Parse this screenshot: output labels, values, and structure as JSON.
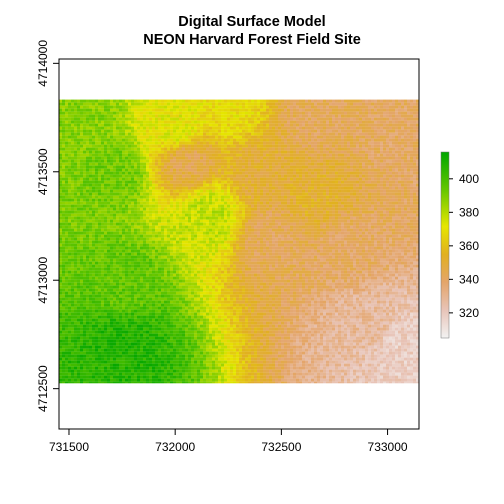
{
  "chart_data": {
    "type": "heatmap",
    "title": "Digital Surface Model",
    "subtitle": "NEON Harvard Forest Field Site",
    "xlabel": "",
    "ylabel": "",
    "xlim": [
      731453,
      733148
    ],
    "ylim": [
      4712314,
      4714020
    ],
    "raster_extent": {
      "xmin": 731453,
      "xmax": 733148,
      "ymin": 4712525,
      "ymax": 4713833
    },
    "x_ticks": [
      731500,
      732000,
      732500,
      733000
    ],
    "y_ticks": [
      4712500,
      4713000,
      4713500,
      4714000
    ],
    "x_tick_labels": [
      "731500",
      "732000",
      "732500",
      "733000"
    ],
    "y_tick_labels": [
      "4712500",
      "4713000",
      "4713500",
      "4714000"
    ],
    "legend": {
      "placement": "right",
      "value_range": [
        305,
        416
      ],
      "ticks": [
        320,
        340,
        360,
        380,
        400
      ],
      "tick_labels": [
        "320",
        "340",
        "360",
        "380",
        "400"
      ],
      "colors": [
        "#F2F2F2",
        "#E8C4B8",
        "#E4A56A",
        "#E1B020",
        "#E6E600",
        "#63C600",
        "#00A600"
      ]
    },
    "grid": false,
    "surface_anchors": [
      {
        "x": 731550,
        "y": 4713750,
        "value": 388
      },
      {
        "x": 731700,
        "y": 4713500,
        "value": 392
      },
      {
        "x": 731750,
        "y": 4713000,
        "value": 395
      },
      {
        "x": 731750,
        "y": 4712700,
        "value": 408
      },
      {
        "x": 732000,
        "y": 4713700,
        "value": 372
      },
      {
        "x": 732050,
        "y": 4713560,
        "value": 345
      },
      {
        "x": 732150,
        "y": 4713300,
        "value": 378
      },
      {
        "x": 732250,
        "y": 4713800,
        "value": 368
      },
      {
        "x": 732400,
        "y": 4713500,
        "value": 350
      },
      {
        "x": 732450,
        "y": 4713200,
        "value": 342
      },
      {
        "x": 732650,
        "y": 4713750,
        "value": 342
      },
      {
        "x": 732650,
        "y": 4713400,
        "value": 352
      },
      {
        "x": 732800,
        "y": 4713150,
        "value": 340
      },
      {
        "x": 732900,
        "y": 4712800,
        "value": 328
      },
      {
        "x": 733050,
        "y": 4712700,
        "value": 318
      },
      {
        "x": 733050,
        "y": 4713650,
        "value": 340
      }
    ]
  }
}
